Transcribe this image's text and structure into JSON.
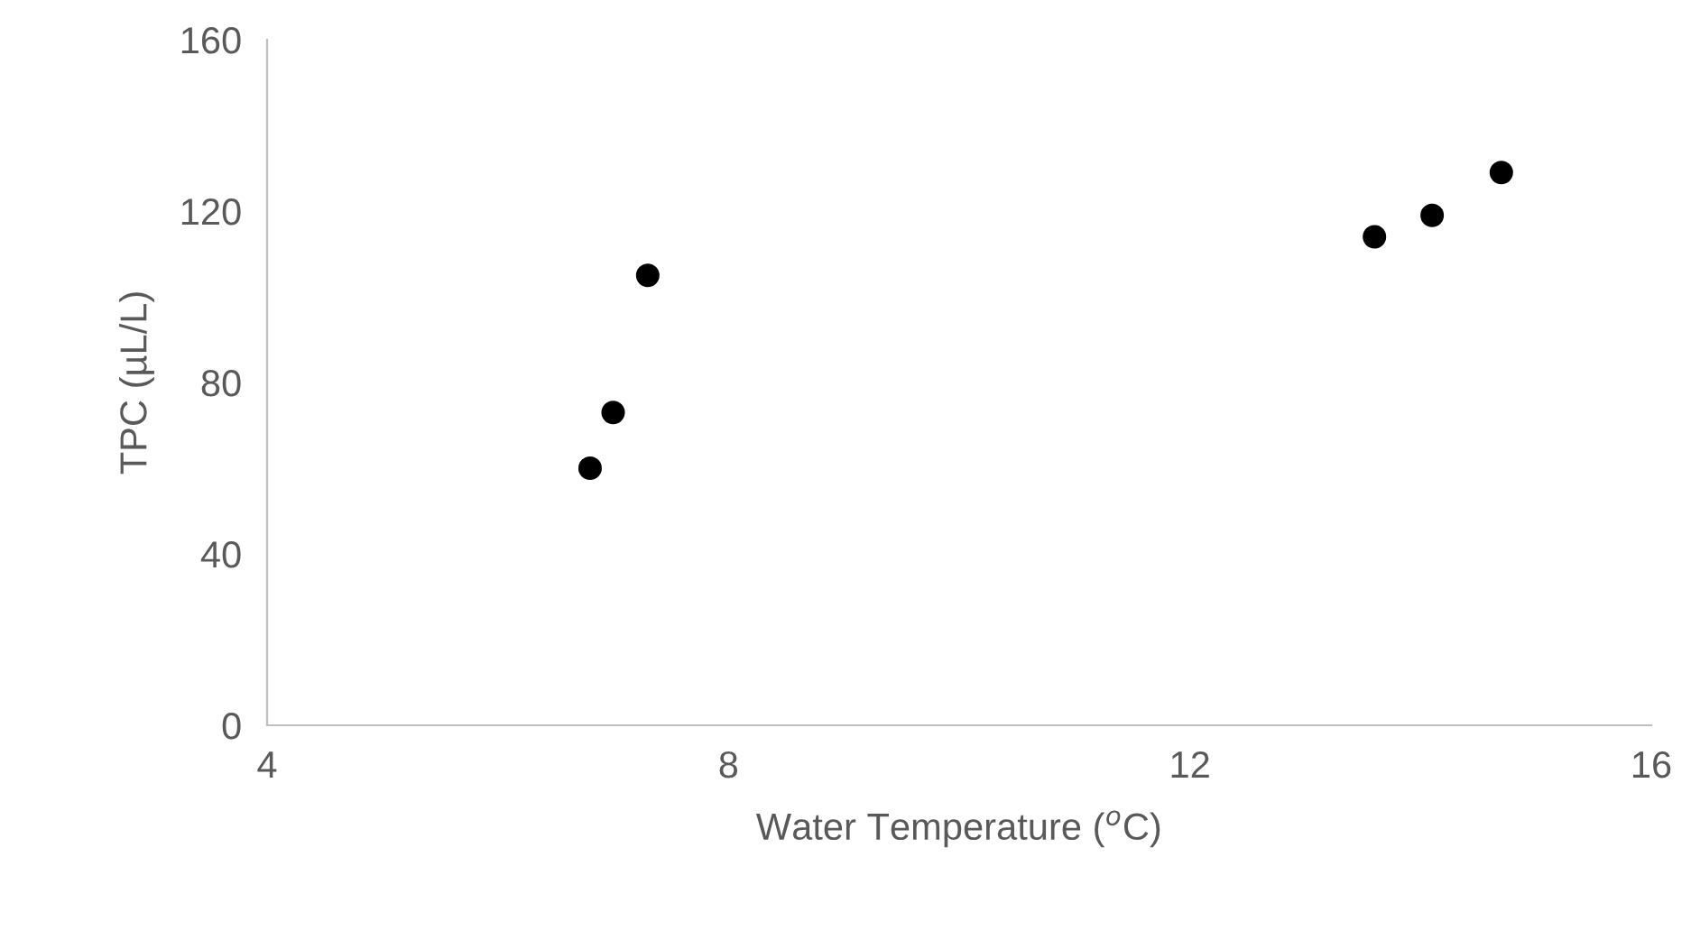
{
  "chart_data": {
    "type": "scatter",
    "xlabel": "Water Temperature ($^{o}$C)",
    "ylabel": "TPC (µL/L)",
    "x": [
      6.8,
      7.0,
      7.3,
      13.6,
      14.1,
      14.7
    ],
    "series": [
      {
        "color": "#000000",
        "values": [
          60,
          73,
          105,
          114,
          119,
          129
        ]
      }
    ],
    "xlim": [
      4,
      16
    ],
    "xticks": [
      4,
      8,
      12,
      16
    ],
    "ylim": [
      0,
      160
    ],
    "yticks": [
      0,
      40,
      80,
      120,
      160
    ],
    "grid": false,
    "marker": "circle"
  }
}
